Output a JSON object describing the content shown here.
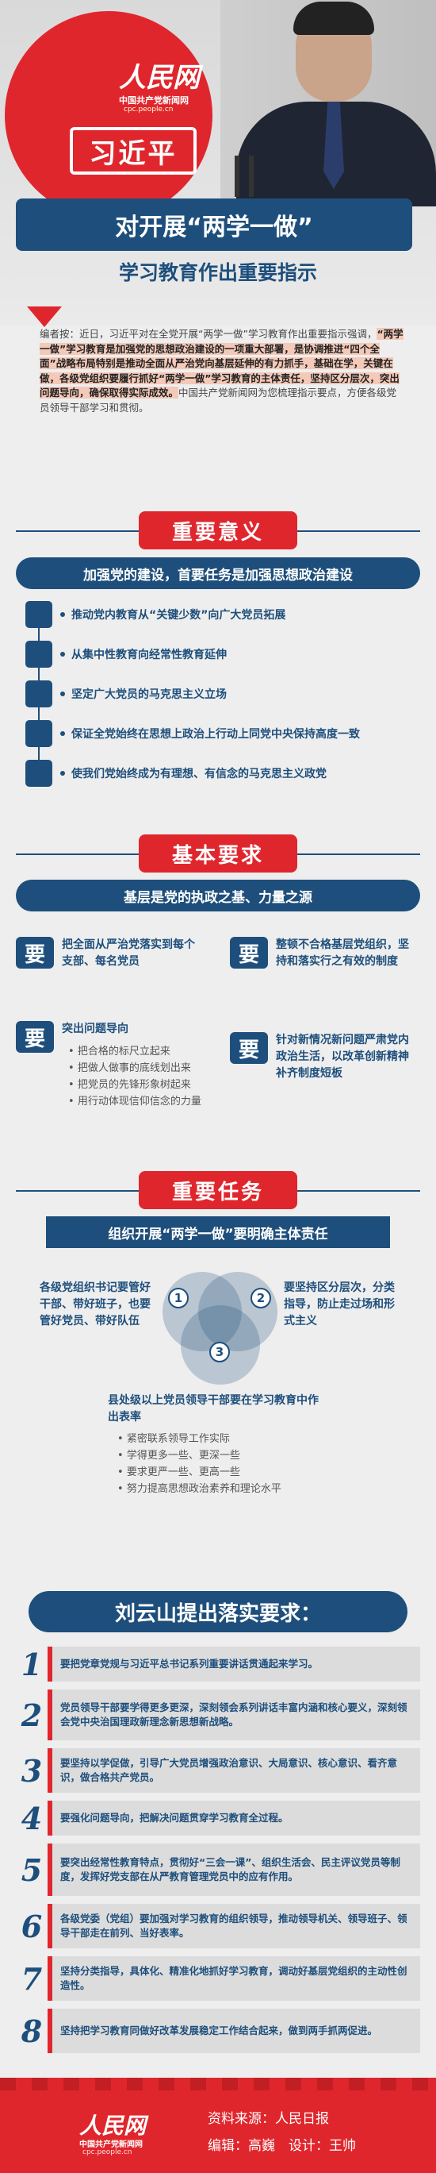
{
  "header": {
    "logo_main": "人民网",
    "logo_sub": "中国共产党新闻网",
    "logo_url": "cpc.people.cn",
    "name": "习近平",
    "title": "对开展“两学一做”",
    "subtitle": "学习教育作出重要指示"
  },
  "note": {
    "part1": "编者按：近日，习近平对在全党开展“两学一做”学习教育作出重要指示强调，",
    "highlight": "“两学一做”学习教育是加强党的思想政治建设的一项重大部署，是协调推进“四个全面”战略布局特别是推动全面从严治党向基层延伸的有力抓手，基础在学，关键在做，各级党组织要履行抓好“两学一做”学习教育的主体责任，坚持区分层次，突出问题导向，确保取得实际成效。",
    "part2": "中国共产党新闻网为您梳理指示要点，方便各级党员领导干部学习和贯彻。"
  },
  "significance": {
    "title": "重要意义",
    "banner": "加强党的建设，首要任务是加强思想政治建设",
    "items": [
      "推动党内教育从“关键少数”向广大党员拓展",
      "从集中性教育向经常性教育延伸",
      "坚定广大党员的马克思主义立场",
      "保证全党始终在思想上政治上行动上同党中央保持高度一致",
      "使我们党始终成为有理想、有信念的马克思主义政党"
    ]
  },
  "requirements": {
    "title": "基本要求",
    "banner": "基层是党的执政之基、力量之源",
    "badge": "要",
    "cards": [
      {
        "text": "把全面从严治党落实到每个支部、每名党员",
        "bullets": []
      },
      {
        "text": "整顿不合格基层党组织，坚持和落实行之有效的制度",
        "bullets": []
      },
      {
        "text": "突出问题导向",
        "bullets": [
          "把合格的标尺立起来",
          "把做人做事的底线划出来",
          "把党员的先锋形象树起来",
          "用行动体现信仰信念的力量"
        ]
      },
      {
        "text": "针对新情况新问题严肃党内政治生活，以改革创新精神补齐制度短板",
        "bullets": []
      }
    ]
  },
  "tasks": {
    "title": "重要任务",
    "banner": "组织开展“两学一做”要明确主体责任",
    "nums": [
      "1",
      "2",
      "3"
    ],
    "t1": "各级党组织书记要管好干部、带好班子，也要管好党员、带好队伍",
    "t2": "要坚持区分层次，分类指导，防止走过场和形式主义",
    "t3": "县处级以上党员领导干部要在学习教育中作出表率",
    "t3_items": [
      "紧密联系领导工作实际",
      "学得更多一些、更深一些",
      "要求更严一些、更高一些",
      "努力提高思想政治素养和理论水平"
    ]
  },
  "liu": {
    "title": "刘云山提出落实要求：",
    "items": [
      {
        "num": "1",
        "text": "要把党章党规与习近平总书记系列重要讲话贯通起来学习。"
      },
      {
        "num": "2",
        "text": "党员领导干部要学得更多更深，深刻领会系列讲话丰富内涵和核心要义，深刻领会党中央治国理政新理念新思想新战略。"
      },
      {
        "num": "3",
        "text": "要坚持以学促做，引导广大党员增强政治意识、大局意识、核心意识、看齐意识，做合格共产党员。"
      },
      {
        "num": "4",
        "text": "要强化问题导向，把解决问题贯穿学习教育全过程。"
      },
      {
        "num": "5",
        "text": "要突出经常性教育特点，贯彻好“三会一课”、组织生活会、民主评议党员等制度，发挥好党支部在从严教育管理党员中的应有作用。"
      },
      {
        "num": "6",
        "text": "各级党委（党组）要加强对学习教育的组织领导，推动领导机关、领导班子、领导干部走在前列、当好表率。"
      },
      {
        "num": "7",
        "text": "坚持分类指导，具体化、精准化地抓好学习教育，调动好基层党组织的主动性创造性。"
      },
      {
        "num": "8",
        "text": "坚持把学习教育同做好改革发展稳定工作结合起来，做到两手抓两促进。"
      }
    ]
  },
  "footer": {
    "logo_main": "人民网",
    "logo_sub": "中国共产党新闻网",
    "logo_url": "cpc.people.cn",
    "source": "资料来源：人民日报",
    "credit": "编辑：高巍　设计：王帅"
  },
  "colors": {
    "red": "#e0262d",
    "blue": "#1e4f7c",
    "bg": "#eeeeee"
  }
}
